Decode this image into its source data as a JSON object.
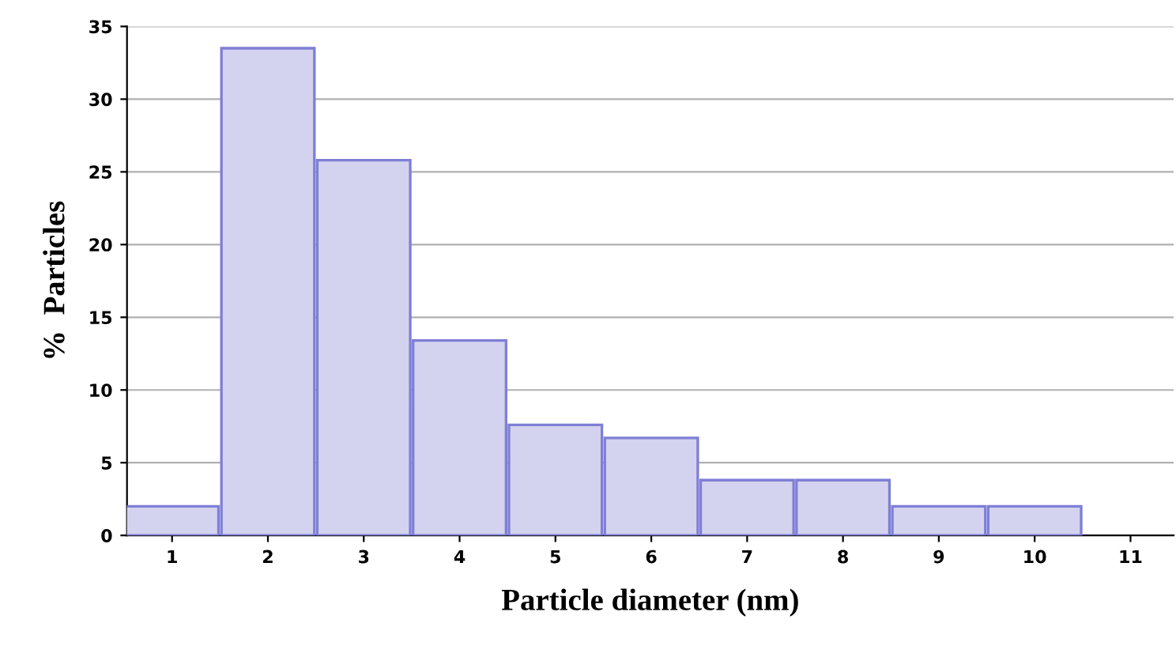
{
  "chart_data": {
    "type": "bar",
    "xlabel": "Particle diameter (nm)",
    "ylabel": "%  Particles",
    "categories": [
      "1",
      "2",
      "3",
      "4",
      "5",
      "6",
      "7",
      "8",
      "9",
      "10",
      "11"
    ],
    "values": [
      2,
      33.5,
      25.8,
      13.4,
      7.6,
      6.7,
      3.8,
      3.8,
      2,
      2,
      null
    ],
    "color": "#d3d3ef",
    "ylim": [
      0,
      35
    ],
    "yticks": [
      0,
      5,
      10,
      15,
      20,
      25,
      30,
      35
    ],
    "grid": "y",
    "legend": false
  }
}
